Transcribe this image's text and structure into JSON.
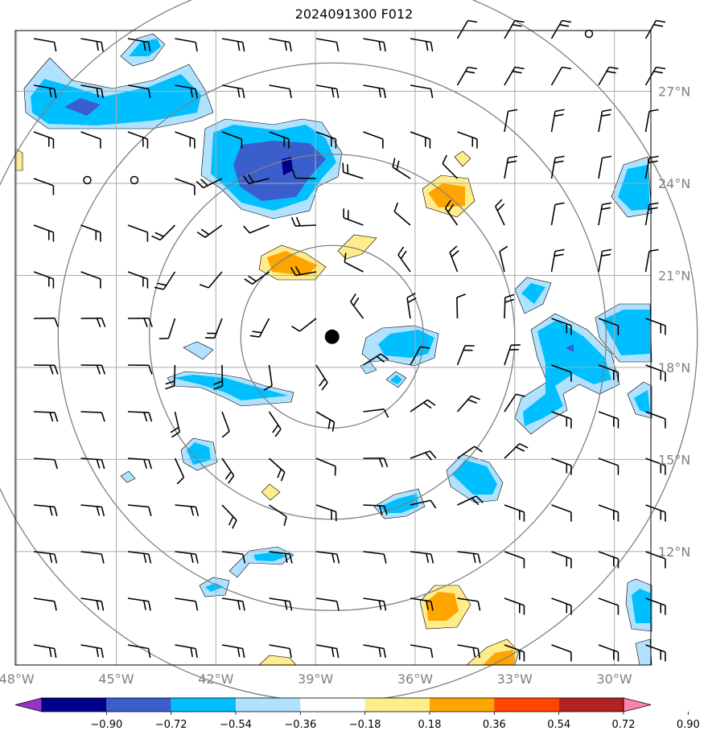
{
  "title": "2024091300 F012",
  "lat_labels": [
    "27°N",
    "24°N",
    "21°N",
    "18°N",
    "15°N",
    "12°N"
  ],
  "lon_labels": [
    "48°W",
    "45°W",
    "42°W",
    "39°W",
    "36°W",
    "33°W",
    "30°W"
  ],
  "colorbar": {
    "ticks": [
      "−0.90",
      "−0.72",
      "−0.54",
      "−0.36",
      "−0.18",
      "0.18",
      "0.36",
      "0.54",
      "0.72",
      "0.90"
    ],
    "colors": [
      "#9932cc",
      "#00008b",
      "#3a5fcd",
      "#00bfff",
      "#b0e2ff",
      "#ffffff",
      "#ffec8b",
      "#ffa500",
      "#ff4500",
      "#b22222",
      "#ff82ab"
    ]
  },
  "storm_center": {
    "lat": 19.0,
    "lon": -38.5
  },
  "range_rings": [
    2.75,
    5.5,
    8.25,
    11.0
  ],
  "blue_color": "#00bfff",
  "light_blue_color": "#b0e2ff",
  "dark_blue_color": "#3a5fcd",
  "orange_color": "#ffa500",
  "yellow_color": "#ffec8b"
}
